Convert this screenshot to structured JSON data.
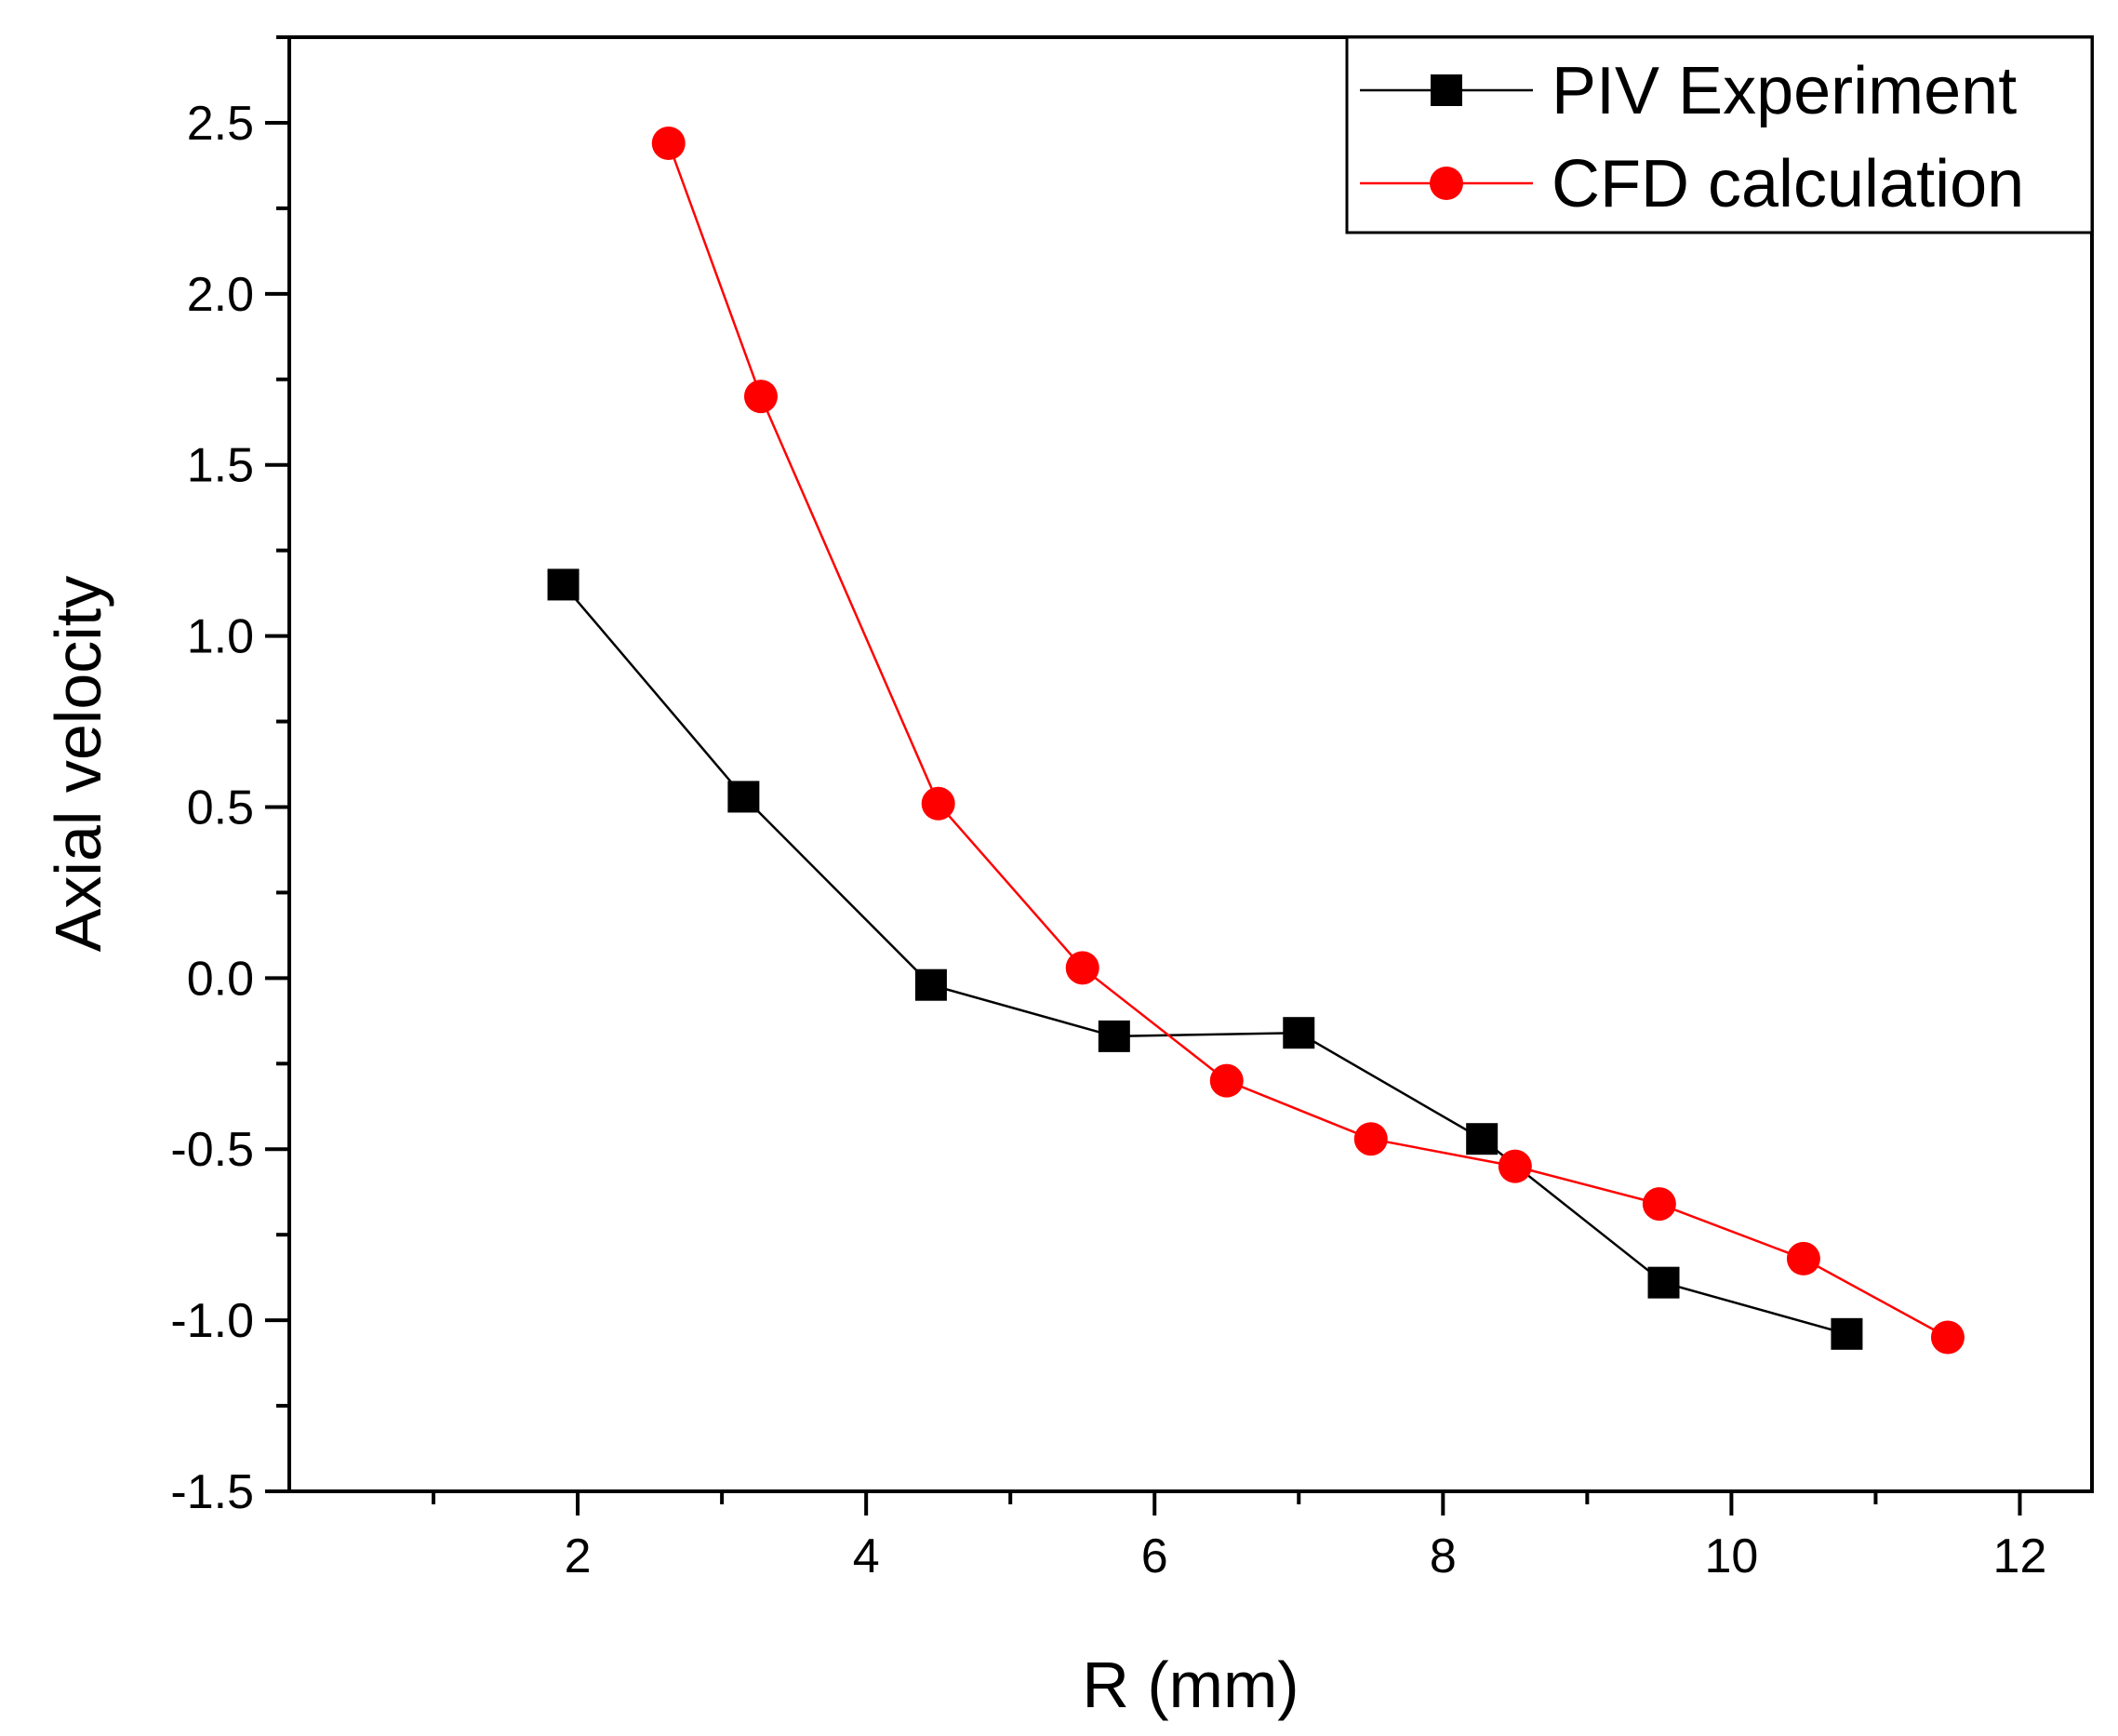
{
  "chart_data": {
    "type": "line",
    "title": "",
    "xlabel": "R (mm)",
    "ylabel": "Axial velocity",
    "xlim": [
      0,
      12.5
    ],
    "ylim": [
      -1.5,
      2.75
    ],
    "xticks": [
      2,
      4,
      6,
      8,
      10,
      12
    ],
    "xtick_labels": [
      "2",
      "4",
      "6",
      "8",
      "10",
      "12"
    ],
    "yticks": [
      -1.5,
      -1.0,
      -0.5,
      0.0,
      0.5,
      1.0,
      1.5,
      2.0,
      2.5
    ],
    "ytick_labels": [
      "-1.5",
      "-1.0",
      "-0.5",
      "0.0",
      "0.5",
      "1.0",
      "1.5",
      "2.0",
      "2.5"
    ],
    "grid": false,
    "legend_position": "top-right",
    "series": [
      {
        "name": "PIV Experiment",
        "color": "#000000",
        "marker": "square",
        "x": [
          1.9,
          3.15,
          4.45,
          5.72,
          7.0,
          8.27,
          9.53,
          10.8
        ],
        "y": [
          1.15,
          0.53,
          -0.02,
          -0.17,
          -0.16,
          -0.47,
          -0.89,
          -1.04
        ]
      },
      {
        "name": "CFD calculation",
        "color": "#ff0000",
        "marker": "circle",
        "x": [
          2.63,
          3.27,
          4.5,
          5.5,
          6.5,
          7.5,
          8.5,
          9.5,
          10.5,
          11.5
        ],
        "y": [
          2.44,
          1.7,
          0.51,
          0.03,
          -0.3,
          -0.47,
          -0.55,
          -0.66,
          -0.82,
          -1.05
        ]
      }
    ]
  }
}
